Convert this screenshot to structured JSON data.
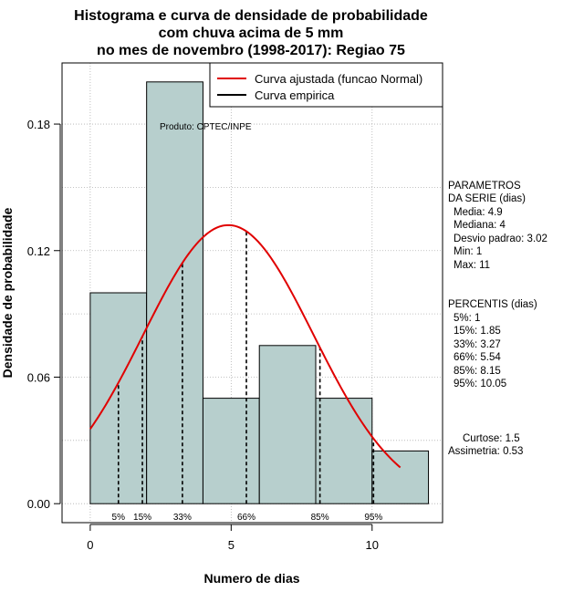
{
  "chart_data": {
    "type": "histogram",
    "title_lines": [
      "Histograma e curva de densidade de probabilidade",
      "com chuva acima de 5 mm",
      "no mes de novembro (1998-2017): Regiao 75"
    ],
    "xlabel": "Numero de dias",
    "ylabel": "Densidade de probabilidade",
    "xlim": [
      -1,
      12.5
    ],
    "ylim": [
      -0.009,
      0.209
    ],
    "x_ticks": [
      0,
      5,
      10
    ],
    "y_ticks": [
      0.0,
      0.06,
      0.12,
      0.18
    ],
    "y_tick_labels": [
      "0.00",
      "0.06",
      "0.12",
      "0.18"
    ],
    "grid": true,
    "bins": [
      {
        "start": 0,
        "end": 2,
        "density": 0.1
      },
      {
        "start": 2,
        "end": 4,
        "density": 0.2
      },
      {
        "start": 4,
        "end": 6,
        "density": 0.05
      },
      {
        "start": 6,
        "end": 8,
        "density": 0.075
      },
      {
        "start": 8,
        "end": 10,
        "density": 0.05
      },
      {
        "start": 10,
        "end": 12,
        "density": 0.025
      }
    ],
    "normal_fit": {
      "mean": 4.9,
      "sd": 3.02,
      "x_range": [
        0,
        11
      ]
    },
    "percentile_lines": [
      {
        "label": "5%",
        "x": 1
      },
      {
        "label": "15%",
        "x": 1.85
      },
      {
        "label": "33%",
        "x": 3.27
      },
      {
        "label": "66%",
        "x": 5.54
      },
      {
        "label": "85%",
        "x": 8.15
      },
      {
        "label": "95%",
        "x": 10.05
      }
    ],
    "legend": {
      "position": "top-right",
      "entries": [
        {
          "label": "Curva ajustada (funcao Normal)",
          "color": "#e00000"
        },
        {
          "label": "Curva empirica",
          "color": "#000000"
        }
      ]
    },
    "source_note": "Produto: CPTEC/INPE",
    "colors": {
      "bar_fill": "#b7cfcd",
      "bar_stroke": "#000000",
      "curve": "#e00000",
      "grid": "#b0b0b0"
    }
  },
  "side_panel": {
    "parametros": [
      "PARAMETROS",
      "DA SERIE (dias)",
      "Media: 4.9",
      "Mediana: 4",
      "Desvio padrao: 3.02",
      "Min: 1",
      "Max: 11"
    ],
    "percentis": [
      "PERCENTIS (dias)",
      "5%: 1",
      "15%: 1.85",
      "33%: 3.27",
      "66%: 5.54",
      "85%: 8.15",
      "95%: 10.05"
    ],
    "curtose": "Curtose: 1.5",
    "assimetria": "Assimetria: 0.53"
  }
}
